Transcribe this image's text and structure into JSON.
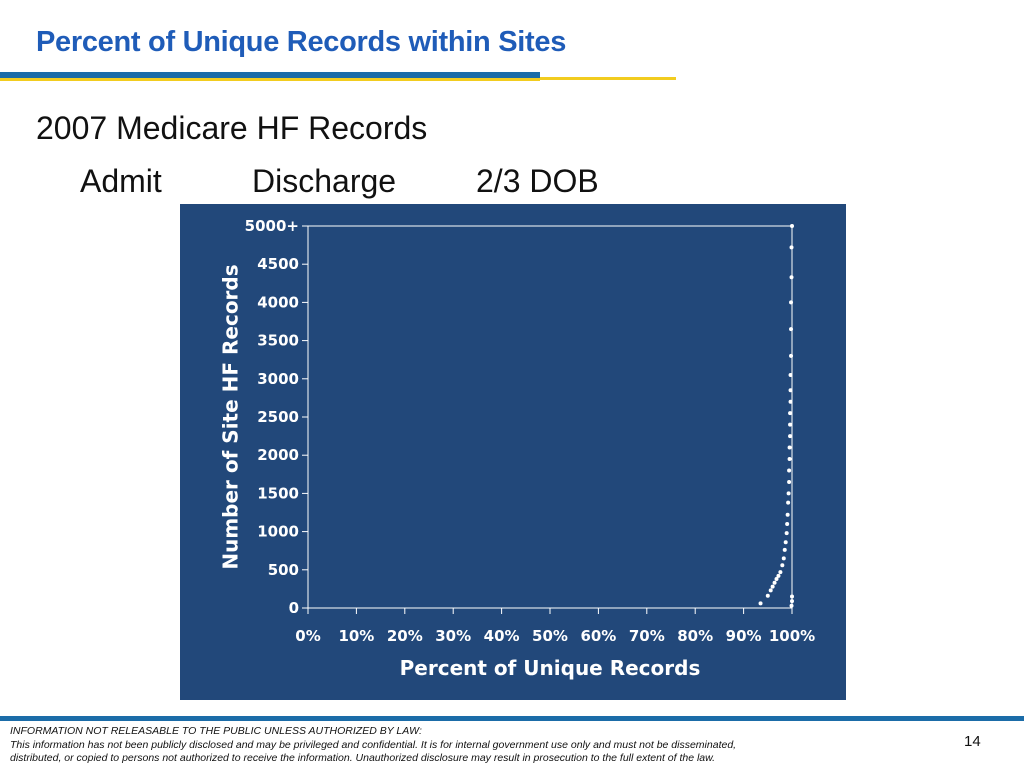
{
  "slide": {
    "title": "Percent of Unique Records within Sites",
    "subtitle": "2007 Medicare HF Records",
    "tabs": [
      "Admit",
      "Discharge",
      "2/3 DOB"
    ],
    "page_number": "14"
  },
  "footer": {
    "line1": "INFORMATION NOT RELEASABLE TO THE PUBLIC UNLESS AUTHORIZED BY LAW:",
    "line2": "This information has not been publicly disclosed and may be privileged and confidential.  It is for internal government use only and must not be disseminated,",
    "line3": "distributed, or copied to persons not authorized to receive the information.  Unauthorized disclosure may result in prosecution to the full extent of the law."
  },
  "colors": {
    "title": "#1f5cb8",
    "accent_blue": "#1b6ca8",
    "accent_gold": "#f2cc1f",
    "chart_background": "#22487a",
    "chart_foreground": "#ffffff"
  },
  "chart_data": {
    "type": "scatter",
    "xlabel": "Percent of Unique Records",
    "ylabel": "Number of Site HF Records",
    "xlim": [
      0,
      100
    ],
    "ylim": [
      0,
      5000
    ],
    "x_ticks": [
      0,
      10,
      20,
      30,
      40,
      50,
      60,
      70,
      80,
      90,
      100
    ],
    "x_tick_labels": [
      "0%",
      "10%",
      "20%",
      "30%",
      "40%",
      "50%",
      "60%",
      "70%",
      "80%",
      "90%",
      "100%"
    ],
    "y_ticks": [
      0,
      500,
      1000,
      1500,
      2000,
      2500,
      3000,
      3500,
      4000,
      4500,
      5000
    ],
    "y_tick_labels": [
      "0",
      "500",
      "1000",
      "1500",
      "2000",
      "2500",
      "3000",
      "3500",
      "4000",
      "4500",
      "5000+"
    ],
    "grid": false,
    "series": [
      {
        "points": [
          [
            93.5,
            60
          ],
          [
            95.0,
            160
          ],
          [
            95.6,
            230
          ],
          [
            96.0,
            280
          ],
          [
            96.4,
            330
          ],
          [
            96.8,
            380
          ],
          [
            97.2,
            420
          ],
          [
            97.6,
            470
          ],
          [
            98.0,
            560
          ],
          [
            98.3,
            650
          ],
          [
            98.5,
            760
          ],
          [
            98.7,
            860
          ],
          [
            98.9,
            980
          ],
          [
            99.0,
            1100
          ],
          [
            99.1,
            1220
          ],
          [
            99.2,
            1380
          ],
          [
            99.3,
            1500
          ],
          [
            99.4,
            1650
          ],
          [
            99.4,
            1800
          ],
          [
            99.5,
            1950
          ],
          [
            99.5,
            2100
          ],
          [
            99.6,
            2250
          ],
          [
            99.6,
            2400
          ],
          [
            99.6,
            2550
          ],
          [
            99.7,
            2700
          ],
          [
            99.7,
            2850
          ],
          [
            99.7,
            3050
          ],
          [
            99.8,
            3300
          ],
          [
            99.8,
            3650
          ],
          [
            99.8,
            4000
          ],
          [
            99.9,
            4330
          ],
          [
            99.9,
            4720
          ],
          [
            100.0,
            5000
          ],
          [
            100.0,
            150
          ],
          [
            100.0,
            90
          ],
          [
            99.9,
            30
          ]
        ]
      }
    ]
  }
}
